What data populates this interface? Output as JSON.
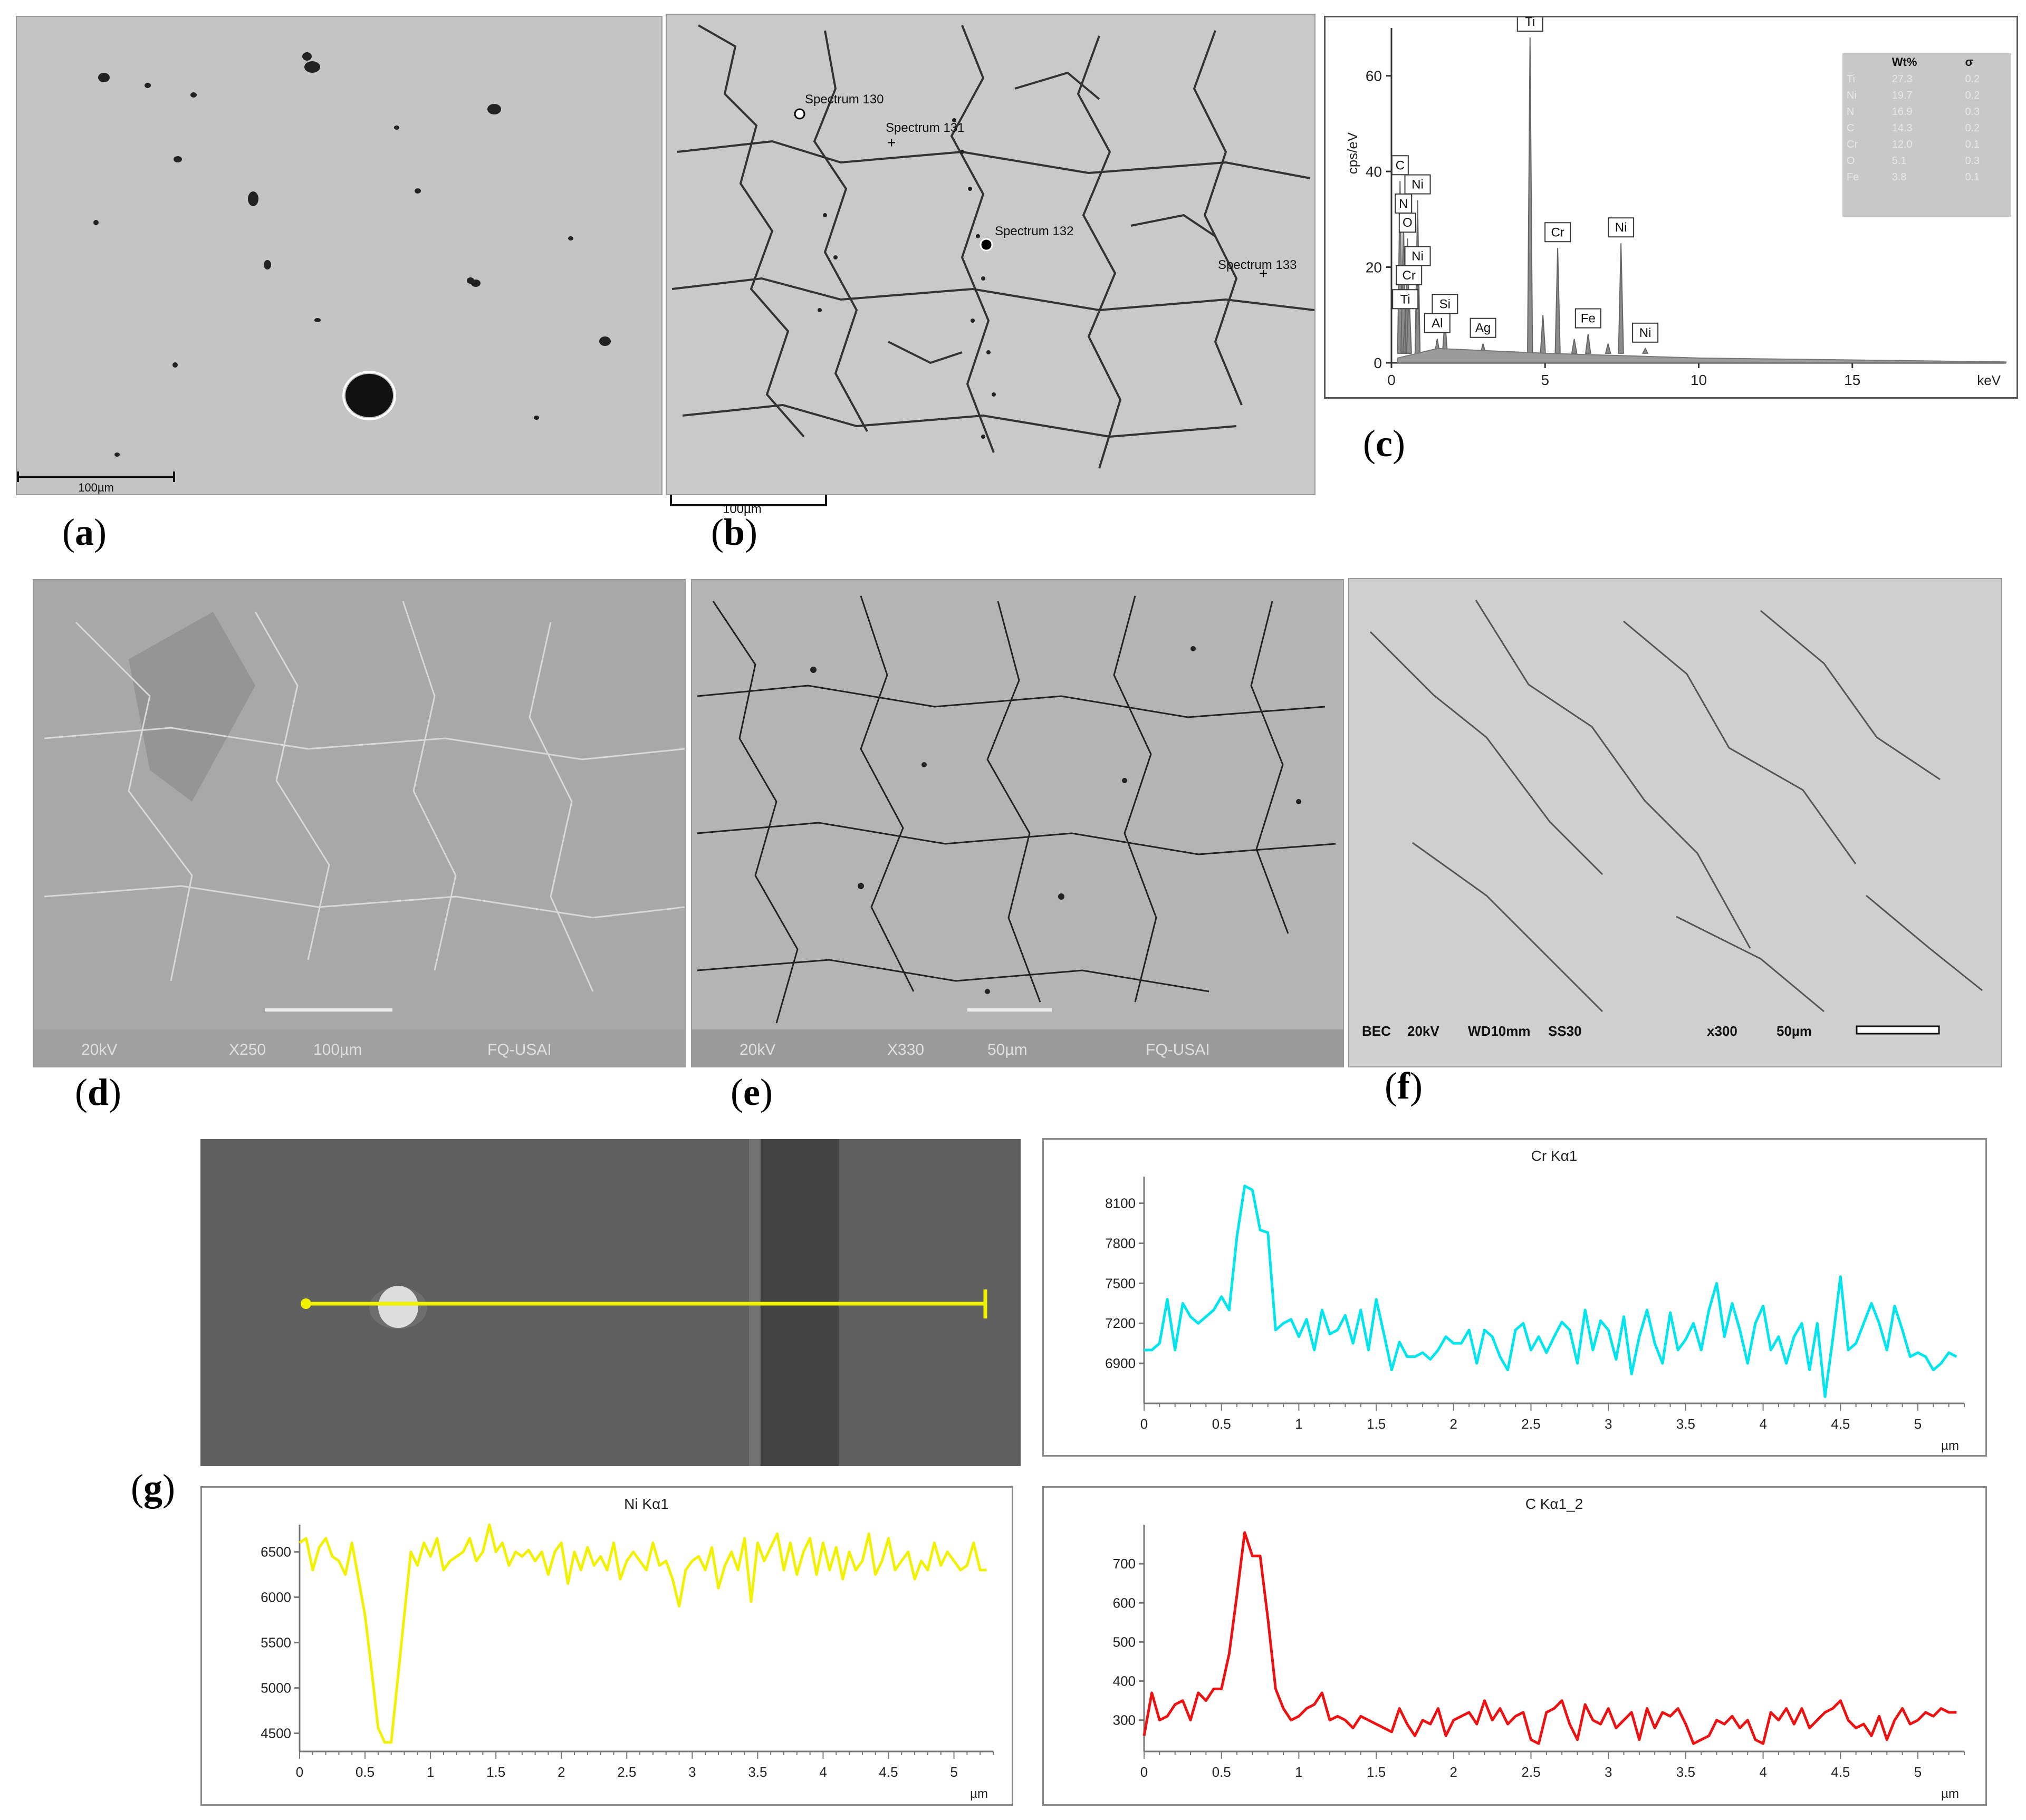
{
  "panels": {
    "a": {
      "caption": "a",
      "scale_bar": "100µm"
    },
    "b": {
      "caption": "b",
      "scale_bar": "100µm",
      "spectra": [
        "Spectrum 130",
        "Spectrum 131",
        "Spectrum 132",
        "Spectrum 133"
      ]
    },
    "c": {
      "caption": "c"
    },
    "d": {
      "caption": "d",
      "banner": [
        "20kV",
        "X250",
        "100µm",
        "FQ-USAI"
      ]
    },
    "e": {
      "caption": "e",
      "banner": [
        "20kV",
        "X330",
        "50µm",
        "FQ-USAI"
      ]
    },
    "f": {
      "caption": "f",
      "banner": [
        "BEC",
        "20kV",
        "WD10mm",
        "SS30",
        "x300",
        "50µm"
      ]
    },
    "g": {
      "caption": "g"
    }
  },
  "eds_table": {
    "headers": [
      "",
      "Wt%",
      "σ"
    ],
    "rows": [
      [
        "Ti",
        "27.3",
        "0.2"
      ],
      [
        "Ni",
        "19.7",
        "0.2"
      ],
      [
        "N",
        "16.9",
        "0.3"
      ],
      [
        "C",
        "14.3",
        "0.2"
      ],
      [
        "Cr",
        "12.0",
        "0.1"
      ],
      [
        "O",
        "5.1",
        "0.3"
      ],
      [
        "Fe",
        "3.8",
        "0.1"
      ]
    ]
  },
  "colors": {
    "cr": "#00e5ee",
    "ni": "#f2f200",
    "c": "#ee1111",
    "spectrum": "#8c8c8c"
  },
  "chart_data": [
    {
      "id": "eds-spectrum",
      "type": "area",
      "xlabel": "keV",
      "ylabel": "cps/eV",
      "xlim": [
        0,
        20
      ],
      "ylim": [
        0,
        70
      ],
      "x_ticks": [
        0,
        5,
        10,
        15
      ],
      "y_ticks": [
        0,
        20,
        40,
        60
      ],
      "peaks": [
        {
          "label": "C",
          "x": 0.28,
          "y": 38
        },
        {
          "label": "N",
          "x": 0.39,
          "y": 30
        },
        {
          "label": "Ni",
          "x": 0.85,
          "y": 34
        },
        {
          "label": "O",
          "x": 0.52,
          "y": 26
        },
        {
          "label": "Ni",
          "x": 0.85,
          "y": 19
        },
        {
          "label": "Cr",
          "x": 0.57,
          "y": 15
        },
        {
          "label": "Ti",
          "x": 0.45,
          "y": 10
        },
        {
          "label": "Al",
          "x": 1.49,
          "y": 5
        },
        {
          "label": "Si",
          "x": 1.74,
          "y": 9
        },
        {
          "label": "Ag",
          "x": 2.98,
          "y": 4
        },
        {
          "label": "Ti",
          "x": 4.51,
          "y": 68
        },
        {
          "label": "Cr",
          "x": 5.41,
          "y": 24
        },
        {
          "label": "Fe",
          "x": 6.4,
          "y": 6
        },
        {
          "label": "Ni",
          "x": 7.47,
          "y": 25
        },
        {
          "label": "Ni",
          "x": 8.26,
          "y": 3
        }
      ],
      "minor_peaks": [
        {
          "x": 4.93,
          "y": 10
        },
        {
          "x": 5.95,
          "y": 5
        },
        {
          "x": 7.05,
          "y": 4
        }
      ]
    },
    {
      "id": "cr-line",
      "type": "line",
      "title": "Cr Kα1",
      "xlabel": "µm",
      "xlim": [
        0,
        5.3
      ],
      "ylim": [
        6600,
        8300
      ],
      "y_ticks": [
        6900,
        7200,
        7500,
        7800,
        8100
      ],
      "x_ticks": [
        0,
        0.5,
        1,
        1.5,
        2,
        2.5,
        3,
        3.5,
        4,
        4.5,
        5
      ],
      "x": [
        0,
        0.05,
        0.1,
        0.15,
        0.2,
        0.25,
        0.3,
        0.35,
        0.4,
        0.45,
        0.5,
        0.55,
        0.6,
        0.65,
        0.7,
        0.75,
        0.8,
        0.85,
        0.9,
        0.95,
        1,
        1.05,
        1.1,
        1.15,
        1.2,
        1.25,
        1.3,
        1.35,
        1.4,
        1.45,
        1.5,
        1.55,
        1.6,
        1.65,
        1.7,
        1.75,
        1.8,
        1.85,
        1.9,
        1.95,
        2,
        2.05,
        2.1,
        2.15,
        2.2,
        2.25,
        2.3,
        2.35,
        2.4,
        2.45,
        2.5,
        2.55,
        2.6,
        2.65,
        2.7,
        2.75,
        2.8,
        2.85,
        2.9,
        2.95,
        3,
        3.05,
        3.1,
        3.15,
        3.2,
        3.25,
        3.3,
        3.35,
        3.4,
        3.45,
        3.5,
        3.55,
        3.6,
        3.65,
        3.7,
        3.75,
        3.8,
        3.85,
        3.9,
        3.95,
        4,
        4.05,
        4.1,
        4.15,
        4.2,
        4.25,
        4.3,
        4.35,
        4.4,
        4.45,
        4.5,
        4.55,
        4.6,
        4.65,
        4.7,
        4.75,
        4.8,
        4.85,
        4.9,
        4.95,
        5,
        5.05,
        5.1,
        5.15,
        5.2,
        5.25
      ],
      "values": [
        7000,
        7000,
        7050,
        7380,
        7000,
        7350,
        7250,
        7200,
        7250,
        7300,
        7400,
        7300,
        7850,
        8230,
        8200,
        7900,
        7880,
        7150,
        7200,
        7230,
        7100,
        7230,
        7000,
        7300,
        7120,
        7150,
        7260,
        7050,
        7300,
        7000,
        7380,
        7120,
        6850,
        7060,
        6950,
        6950,
        6980,
        6930,
        7000,
        7100,
        7050,
        7050,
        7150,
        6900,
        7150,
        7100,
        6950,
        6850,
        7150,
        7200,
        7000,
        7100,
        6980,
        7100,
        7210,
        7150,
        6900,
        7300,
        7000,
        7220,
        7150,
        6930,
        7250,
        6820,
        7100,
        7300,
        7050,
        6900,
        7280,
        7000,
        7080,
        7200,
        7000,
        7300,
        7500,
        7100,
        7350,
        7150,
        6900,
        7200,
        7330,
        7000,
        7100,
        6900,
        7100,
        7200,
        6850,
        7200,
        6650,
        7080,
        7550,
        7000,
        7050,
        7200,
        7350,
        7200,
        7000,
        7330,
        7150,
        6950,
        6980,
        6950,
        6850,
        6900,
        6980,
        6950
      ]
    },
    {
      "id": "ni-line",
      "type": "line",
      "title": "Ni Kα1",
      "xlabel": "µm",
      "xlim": [
        0,
        5.3
      ],
      "ylim": [
        4300,
        6800
      ],
      "y_ticks": [
        4500,
        5000,
        5500,
        6000,
        6500
      ],
      "x_ticks": [
        0,
        0.5,
        1,
        1.5,
        2,
        2.5,
        3,
        3.5,
        4,
        4.5,
        5
      ],
      "values": [
        6600,
        6650,
        6300,
        6550,
        6650,
        6450,
        6400,
        6250,
        6600,
        6200,
        5800,
        5200,
        4560,
        4400,
        4400,
        5100,
        5800,
        6500,
        6350,
        6600,
        6450,
        6650,
        6300,
        6400,
        6450,
        6500,
        6650,
        6400,
        6500,
        6800,
        6500,
        6600,
        6350,
        6500,
        6450,
        6520,
        6400,
        6500,
        6250,
        6500,
        6600,
        6150,
        6500,
        6300,
        6550,
        6350,
        6450,
        6300,
        6600,
        6200,
        6400,
        6500,
        6400,
        6300,
        6600,
        6350,
        6400,
        6200,
        5900,
        6300,
        6400,
        6450,
        6300,
        6550,
        6100,
        6350,
        6500,
        6300,
        6650,
        5950,
        6600,
        6400,
        6550,
        6700,
        6300,
        6600,
        6250,
        6500,
        6650,
        6250,
        6600,
        6300,
        6550,
        6200,
        6500,
        6300,
        6400,
        6700,
        6250,
        6400,
        6650,
        6300,
        6400,
        6500,
        6200,
        6400,
        6300,
        6600,
        6350,
        6500,
        6400,
        6300,
        6350,
        6600,
        6300,
        6300
      ]
    },
    {
      "id": "c-line",
      "type": "line",
      "title": "C Kα1_2",
      "xlabel": "µm",
      "xlim": [
        0,
        5.3
      ],
      "ylim": [
        220,
        800
      ],
      "y_ticks": [
        300,
        400,
        500,
        600,
        700
      ],
      "x_ticks": [
        0,
        0.5,
        1,
        1.5,
        2,
        2.5,
        3,
        3.5,
        4,
        4.5,
        5
      ],
      "values": [
        260,
        370,
        300,
        310,
        340,
        350,
        300,
        370,
        350,
        380,
        380,
        470,
        620,
        780,
        720,
        720,
        560,
        380,
        330,
        300,
        310,
        330,
        340,
        370,
        300,
        310,
        300,
        280,
        310,
        300,
        290,
        280,
        270,
        330,
        290,
        260,
        300,
        290,
        330,
        260,
        300,
        310,
        320,
        290,
        350,
        300,
        330,
        290,
        310,
        320,
        250,
        240,
        320,
        330,
        350,
        290,
        250,
        340,
        300,
        290,
        330,
        280,
        300,
        320,
        250,
        330,
        280,
        320,
        310,
        330,
        290,
        240,
        250,
        260,
        300,
        290,
        310,
        280,
        300,
        250,
        240,
        320,
        300,
        330,
        290,
        330,
        280,
        300,
        320,
        330,
        350,
        300,
        280,
        290,
        260,
        310,
        250,
        300,
        330,
        290,
        300,
        320,
        310,
        330,
        320,
        320
      ]
    }
  ]
}
